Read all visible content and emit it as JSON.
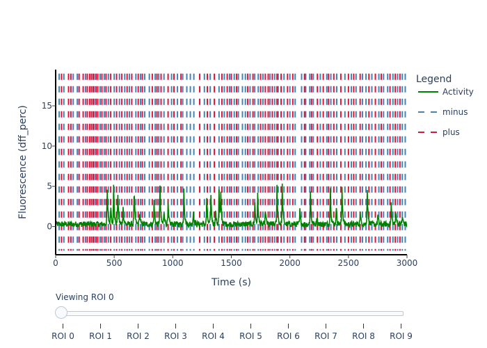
{
  "chart_data": {
    "type": "line",
    "title": "",
    "xlabel": "Time (s)",
    "ylabel": "Fluorescence (dff_perc)",
    "xlim": [
      0,
      3000
    ],
    "ylim": [
      -3.5,
      19.5
    ],
    "x_ticks": [
      "0",
      "500",
      "1000",
      "1500",
      "2000",
      "2500",
      "3000"
    ],
    "y_ticks": [
      "0",
      "5",
      "10",
      "15"
    ],
    "grid": false,
    "legend": {
      "title": "Legend",
      "placement": "right",
      "entries": [
        {
          "name": "Activity",
          "color": "#008000",
          "style": "solid"
        },
        {
          "name": "minus",
          "color": "#4682b4",
          "style": "dash"
        },
        {
          "name": "plus",
          "color": "#dc143c",
          "style": "dash"
        }
      ]
    },
    "series": [
      {
        "name": "Activity",
        "color": "#008000",
        "baseline": 0.3,
        "noise_amplitude": 0.5,
        "peaks": [
          {
            "x": 440,
            "y": 5.2
          },
          {
            "x": 470,
            "y": 3.1
          },
          {
            "x": 495,
            "y": 5.0
          },
          {
            "x": 530,
            "y": 4.8
          },
          {
            "x": 575,
            "y": 2.6
          },
          {
            "x": 670,
            "y": 4.9
          },
          {
            "x": 715,
            "y": 1.9
          },
          {
            "x": 840,
            "y": 3.1
          },
          {
            "x": 890,
            "y": 5.6
          },
          {
            "x": 925,
            "y": 2.3
          },
          {
            "x": 960,
            "y": 2.8
          },
          {
            "x": 1095,
            "y": 4.9
          },
          {
            "x": 1175,
            "y": 2.2
          },
          {
            "x": 1290,
            "y": 3.6
          },
          {
            "x": 1325,
            "y": 4.5
          },
          {
            "x": 1365,
            "y": 2.1
          },
          {
            "x": 1395,
            "y": 4.6
          },
          {
            "x": 1410,
            "y": 3.8
          },
          {
            "x": 1700,
            "y": 3.4
          },
          {
            "x": 1725,
            "y": 4.0
          },
          {
            "x": 1790,
            "y": 2.4
          },
          {
            "x": 1890,
            "y": 5.0
          },
          {
            "x": 1935,
            "y": 5.1
          },
          {
            "x": 2085,
            "y": 2.0
          },
          {
            "x": 2175,
            "y": 4.3
          },
          {
            "x": 2230,
            "y": 1.6
          },
          {
            "x": 2345,
            "y": 5.4
          },
          {
            "x": 2395,
            "y": 2.8
          },
          {
            "x": 2445,
            "y": 5.1
          },
          {
            "x": 2600,
            "y": 1.9
          },
          {
            "x": 2660,
            "y": 5.3
          },
          {
            "x": 2750,
            "y": 1.6
          },
          {
            "x": 2865,
            "y": 2.9
          },
          {
            "x": 2905,
            "y": 2.2
          },
          {
            "x": 2960,
            "y": 1.4
          }
        ]
      },
      {
        "name": "minus",
        "color": "#4682b4",
        "x": [
          30,
          70,
          150,
          185,
          255,
          330,
          380,
          415,
          450,
          500,
          545,
          590,
          630,
          685,
          725,
          760,
          800,
          850,
          880,
          925,
          990,
          1040,
          1085,
          1120,
          1150,
          1180,
          1270,
          1320,
          1395,
          1440,
          1485,
          1525,
          1560,
          1595,
          1620,
          1660,
          1700,
          1730,
          1770,
          1830,
          1870,
          1900,
          1950,
          2000,
          2045,
          2100,
          2135,
          2170,
          2200,
          2260,
          2315,
          2350,
          2400,
          2470,
          2525,
          2565,
          2620,
          2650,
          2700,
          2760,
          2800,
          2835,
          2880,
          2920,
          2960,
          2985
        ]
      },
      {
        "name": "plus",
        "color": "#dc143c",
        "x": [
          50,
          110,
          130,
          200,
          235,
          270,
          290,
          305,
          320,
          345,
          360,
          395,
          430,
          470,
          520,
          565,
          610,
          650,
          705,
          740,
          825,
          865,
          900,
          960,
          1010,
          1070,
          1230,
          1295,
          1355,
          1420,
          1465,
          1500,
          1545,
          1640,
          1685,
          1750,
          1790,
          1815,
          1850,
          1890,
          1925,
          1980,
          2025,
          2125,
          2185,
          2235,
          2285,
          2330,
          2375,
          2435,
          2500,
          2545,
          2600,
          2675,
          2730,
          2780,
          2855,
          2900,
          2940
        ]
      }
    ],
    "plus_minus_y_ticks": [
      -2,
      0,
      2.5,
      5,
      7.5,
      10,
      12.5,
      15,
      17.5
    ]
  },
  "slider": {
    "label": "Viewing ROI 0",
    "selected_index": 0,
    "ticks": [
      "ROI 0",
      "ROI 1",
      "ROI 2",
      "ROI 3",
      "ROI 4",
      "ROI 5",
      "ROI 6",
      "ROI 7",
      "ROI 8",
      "ROI 9"
    ]
  }
}
